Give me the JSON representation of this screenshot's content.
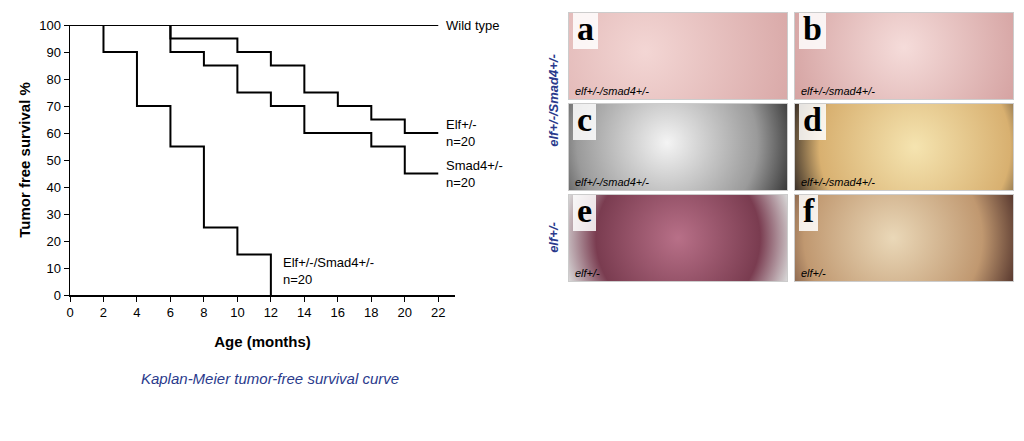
{
  "chart_data": {
    "type": "line",
    "line_style": "step",
    "x_label": "Age (months)",
    "y_label": "Tumor free survival %",
    "caption": "Kaplan-Meier tumor-free survival curve",
    "xlim": [
      0,
      23
    ],
    "xticks": [
      0,
      2,
      4,
      6,
      8,
      10,
      12,
      14,
      16,
      18,
      20,
      22
    ],
    "ylim": [
      0,
      100
    ],
    "yticks": [
      0,
      10,
      20,
      30,
      40,
      50,
      60,
      70,
      80,
      90,
      100
    ],
    "grid": false,
    "legend": false,
    "series": [
      {
        "name": "Wild type",
        "color": "#000000",
        "x": [
          0,
          22
        ],
        "values": [
          100,
          100
        ]
      },
      {
        "name": "Elf+/-",
        "note": "n=20",
        "color": "#000000",
        "x": [
          0,
          6,
          10,
          12,
          14,
          16,
          18,
          20,
          22
        ],
        "values": [
          100,
          95,
          90,
          85,
          75,
          70,
          65,
          60,
          60
        ]
      },
      {
        "name": "Smad4+/-",
        "note": "n=20",
        "color": "#000000",
        "x": [
          0,
          6,
          8,
          10,
          12,
          14,
          18,
          20,
          22
        ],
        "values": [
          100,
          90,
          85,
          75,
          70,
          60,
          55,
          45,
          45
        ]
      },
      {
        "name": "Elf+/-/Smad4+/-",
        "note": "n=20",
        "color": "#000000",
        "x": [
          0,
          2,
          4,
          6,
          8,
          10,
          12
        ],
        "values": [
          100,
          90,
          70,
          55,
          25,
          15,
          0
        ]
      }
    ]
  },
  "figure_panels": {
    "row_labels": [
      "elf+/-/Smad4+/-",
      "elf+/-"
    ],
    "panels": [
      {
        "letter": "a",
        "label": "elf+/-/smad4+/-"
      },
      {
        "letter": "b",
        "label": "elf+/-/smad4+/-"
      },
      {
        "letter": "c",
        "label": "elf+/-/smad4+/-"
      },
      {
        "letter": "d",
        "label": "elf+/-/smad4+/-"
      },
      {
        "letter": "e",
        "label": "elf+/-"
      },
      {
        "letter": "f",
        "label": "elf+/-"
      }
    ]
  }
}
